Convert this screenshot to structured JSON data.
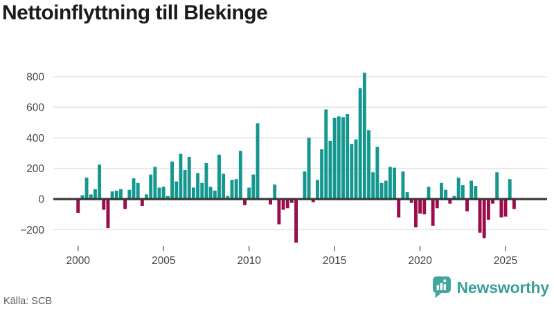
{
  "title": "Nettoinflyttning till Blekinge",
  "footer": {
    "source": "Källa: SCB"
  },
  "brand": {
    "name": "Newsworthy"
  },
  "colors": {
    "positive": "#14978e",
    "negative": "#9b0c4b",
    "grid": "#e4e4e4",
    "zero_line": "#383838",
    "axis_text": "#454545",
    "tick_mark": "#7a7a7a",
    "title_text": "#1b1b1b",
    "source_text": "#5a5a5a",
    "brand_teal": "#3aa09b"
  },
  "chart_data": {
    "type": "bar",
    "title": "Nettoinflyttning till Blekinge",
    "source": "SCB",
    "grid": "horizontal",
    "legend": "none",
    "ylim": [
      -300,
      880
    ],
    "y_axis": {
      "tick_values": [
        800,
        600,
        400,
        200,
        0,
        -200
      ],
      "tick_labels": [
        "800",
        "600",
        "400",
        "200",
        "0",
        "−200"
      ]
    },
    "x_axis": {
      "tick_labels": [
        "2000",
        "2005",
        "2010",
        "2015",
        "2020",
        "2025"
      ],
      "ticks_every_years": 5
    },
    "x": [
      "2000 Q1",
      "2000 Q2",
      "2000 Q3",
      "2000 Q4",
      "2001 Q1",
      "2001 Q2",
      "2001 Q3",
      "2001 Q4",
      "2002 Q1",
      "2002 Q2",
      "2002 Q3",
      "2002 Q4",
      "2003 Q1",
      "2003 Q2",
      "2003 Q3",
      "2003 Q4",
      "2004 Q1",
      "2004 Q2",
      "2004 Q3",
      "2004 Q4",
      "2005 Q1",
      "2005 Q2",
      "2005 Q3",
      "2005 Q4",
      "2006 Q1",
      "2006 Q2",
      "2006 Q3",
      "2006 Q4",
      "2007 Q1",
      "2007 Q2",
      "2007 Q3",
      "2007 Q4",
      "2008 Q1",
      "2008 Q2",
      "2008 Q3",
      "2008 Q4",
      "2009 Q1",
      "2009 Q2",
      "2009 Q3",
      "2009 Q4",
      "2010 Q1",
      "2010 Q2",
      "2010 Q3",
      "2010 Q4",
      "2011 Q1",
      "2011 Q2",
      "2011 Q3",
      "2011 Q4",
      "2012 Q1",
      "2012 Q2",
      "2012 Q3",
      "2012 Q4",
      "2013 Q1",
      "2013 Q2",
      "2013 Q3",
      "2013 Q4",
      "2014 Q1",
      "2014 Q2",
      "2014 Q3",
      "2014 Q4",
      "2015 Q1",
      "2015 Q2",
      "2015 Q3",
      "2015 Q4",
      "2016 Q1",
      "2016 Q2",
      "2016 Q3",
      "2016 Q4",
      "2017 Q1",
      "2017 Q2",
      "2017 Q3",
      "2017 Q4",
      "2018 Q1",
      "2018 Q2",
      "2018 Q3",
      "2018 Q4",
      "2019 Q1",
      "2019 Q2",
      "2019 Q3",
      "2019 Q4",
      "2020 Q1",
      "2020 Q2",
      "2020 Q3",
      "2020 Q4",
      "2021 Q1",
      "2021 Q2",
      "2021 Q3",
      "2021 Q4",
      "2022 Q1",
      "2022 Q2",
      "2022 Q3",
      "2022 Q4",
      "2023 Q1",
      "2023 Q2",
      "2023 Q3",
      "2023 Q4",
      "2024 Q1",
      "2024 Q2",
      "2024 Q3",
      "2024 Q4",
      "2025 Q1",
      "2025 Q2",
      "2025 Q3"
    ],
    "values": [
      -90,
      25,
      140,
      30,
      65,
      225,
      -70,
      -190,
      50,
      55,
      65,
      -65,
      60,
      135,
      105,
      -45,
      30,
      160,
      210,
      75,
      80,
      20,
      245,
      115,
      295,
      190,
      275,
      75,
      170,
      105,
      235,
      80,
      55,
      290,
      165,
      20,
      125,
      130,
      315,
      -40,
      75,
      160,
      495,
      0,
      0,
      -35,
      95,
      -165,
      -70,
      -60,
      -25,
      -285,
      0,
      180,
      400,
      -20,
      125,
      325,
      585,
      380,
      530,
      540,
      535,
      555,
      360,
      390,
      725,
      825,
      450,
      175,
      340,
      105,
      120,
      210,
      205,
      -120,
      180,
      45,
      -25,
      -185,
      -95,
      -100,
      80,
      -175,
      -60,
      105,
      60,
      -30,
      20,
      140,
      90,
      -80,
      120,
      85,
      -220,
      -255,
      -135,
      -30,
      175,
      -120,
      -115,
      130,
      -65
    ]
  }
}
